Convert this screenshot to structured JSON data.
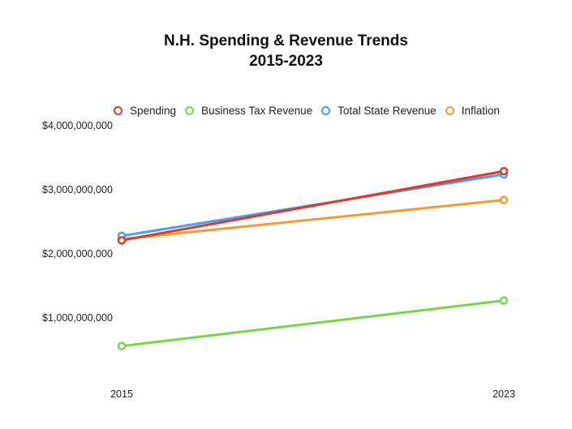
{
  "chart_data": {
    "type": "line",
    "title": "N.H. Spending & Revenue Trends",
    "subtitle": "2015-2023",
    "xlabel": "",
    "ylabel": "",
    "x": [
      "2015",
      "2023"
    ],
    "ylim": [
      0,
      4000000000
    ],
    "yticks": [
      1000000000,
      2000000000,
      3000000000,
      4000000000
    ],
    "ytick_labels": [
      "$1,000,000,000",
      "$2,000,000,000",
      "$3,000,000,000",
      "$4,000,000,000"
    ],
    "grid": false,
    "legend_position": "top",
    "series": [
      {
        "name": "Spending",
        "color": "#e0392b",
        "values": [
          2210000000,
          3290000000
        ]
      },
      {
        "name": "Business Tax Revenue",
        "color": "#78d44a",
        "values": [
          560000000,
          1270000000
        ]
      },
      {
        "name": "Total State Revenue",
        "color": "#4a9ff0",
        "values": [
          2280000000,
          3240000000
        ]
      },
      {
        "name": "Inflation",
        "color": "#f39a35",
        "values": [
          2230000000,
          2840000000
        ]
      }
    ]
  }
}
